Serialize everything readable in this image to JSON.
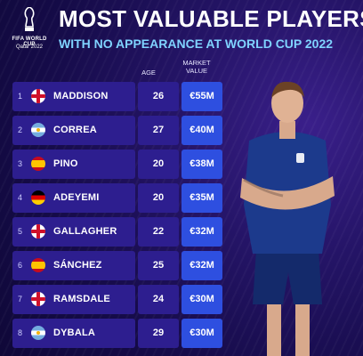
{
  "header": {
    "logo_line1": "FIFA WORLD CUP",
    "logo_line2": "Qatar 2022",
    "title": "MOST VALUABLE PLAYERS",
    "subtitle": "WITH NO APPEARANCE AT WORLD CUP 2022"
  },
  "columns": {
    "age": "AGE",
    "market_value_line1": "MARKET",
    "market_value_line2": "VALUE"
  },
  "colors": {
    "row_bg": "#2d1e8f",
    "value_bg": "#2e4fe0",
    "subtitle": "#7fd3ff",
    "background": "#1a0e55"
  },
  "players": [
    {
      "rank": "1",
      "flag": "england-flag-icon",
      "name": "MADDISON",
      "age": "26",
      "value": "€55M"
    },
    {
      "rank": "2",
      "flag": "argentina-flag-icon",
      "name": "CORREA",
      "age": "27",
      "value": "€40M"
    },
    {
      "rank": "3",
      "flag": "spain-flag-icon",
      "name": "PINO",
      "age": "20",
      "value": "€38M"
    },
    {
      "rank": "4",
      "flag": "germany-flag-icon",
      "name": "ADEYEMI",
      "age": "20",
      "value": "€35M"
    },
    {
      "rank": "5",
      "flag": "england-flag-icon",
      "name": "GALLAGHER",
      "age": "22",
      "value": "€32M"
    },
    {
      "rank": "6",
      "flag": "spain-flag-icon",
      "name": "SÁNCHEZ",
      "age": "25",
      "value": "€32M"
    },
    {
      "rank": "7",
      "flag": "england-flag-icon",
      "name": "RAMSDALE",
      "age": "24",
      "value": "€30M"
    },
    {
      "rank": "8",
      "flag": "argentina-flag-icon",
      "name": "DYBALA",
      "age": "29",
      "value": "€30M"
    }
  ]
}
